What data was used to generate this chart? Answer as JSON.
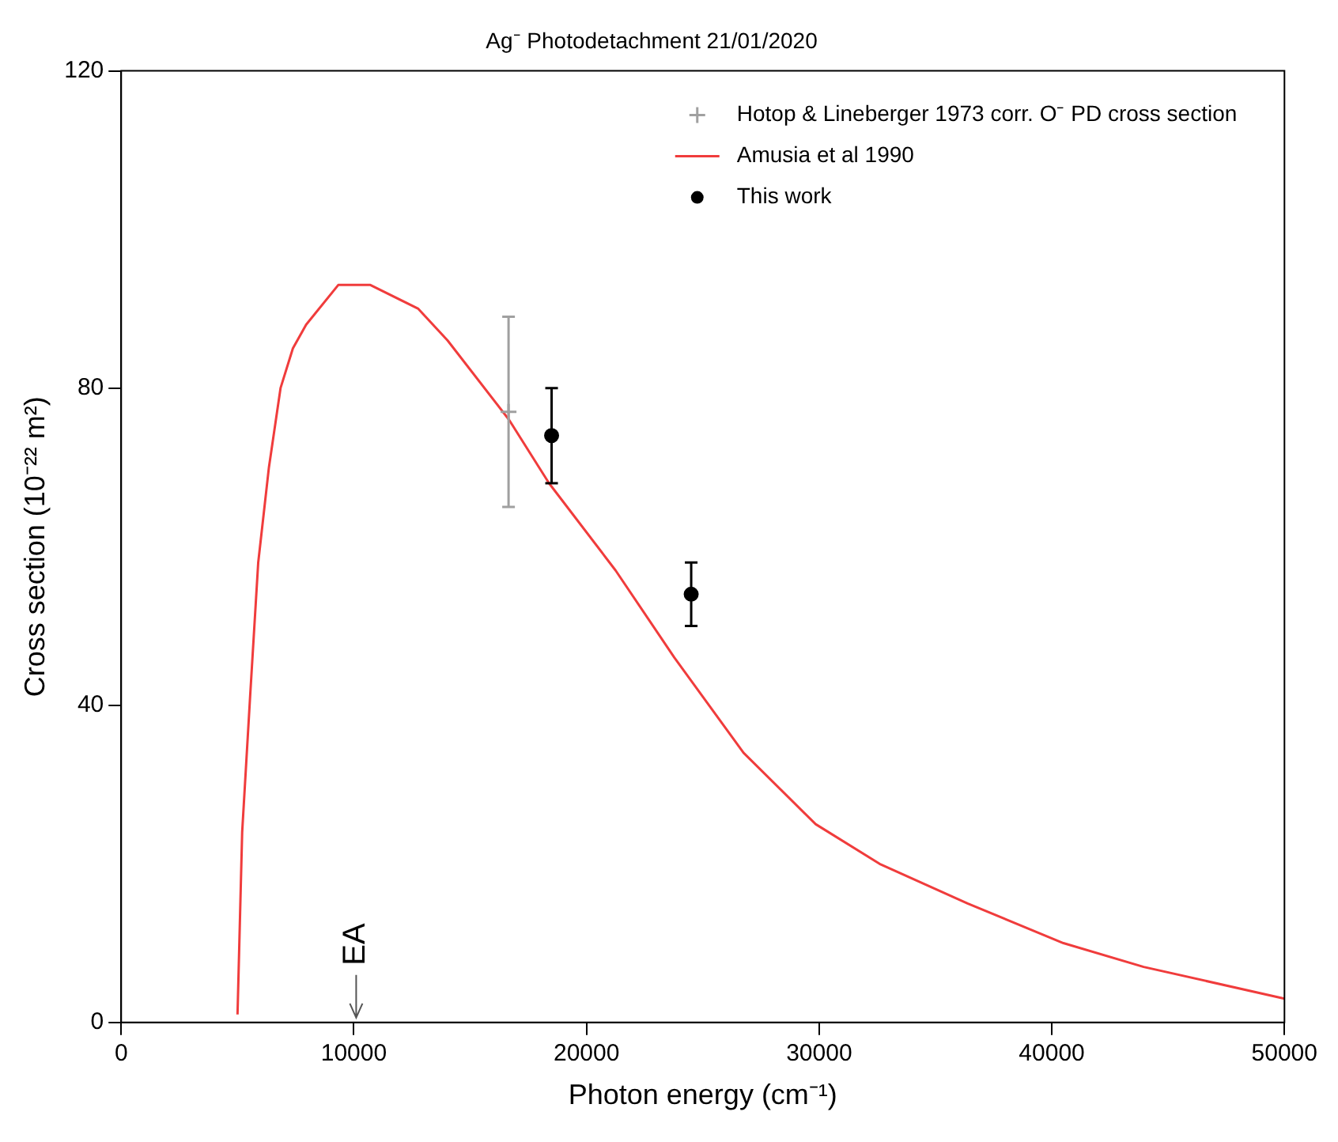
{
  "chart_data": {
    "type": "scatter",
    "title": "Ag⁻ Photodetachment 21/01/2020",
    "xlabel": "Photon energy (cm⁻¹)",
    "ylabel": "Cross section (10⁻²² m²)",
    "xlim": [
      0,
      50000
    ],
    "xticks": [
      0,
      10000,
      20000,
      30000,
      40000,
      50000
    ],
    "ylim": [
      0,
      120
    ],
    "yticks": [
      0,
      40,
      80,
      120
    ],
    "grid": false,
    "legend": "top right",
    "annotations": [
      "EA"
    ],
    "series": [
      {
        "name": "Hotop & Lineberger 1973 corr. O⁻ PD cross section",
        "marker": "cross",
        "color": "#a0a0a0",
        "x": [
          16650
        ],
        "values": [
          77
        ],
        "errors": [
          12
        ]
      },
      {
        "name": "Amusia et al 1990",
        "type": "line",
        "marker": "none",
        "color": "#f03c3c",
        "x": [
          5000,
          5200,
          5540,
          5890,
          6350,
          6850,
          7380,
          7950,
          9330,
          10710,
          12770,
          14030,
          16670,
          18390,
          21250,
          23780,
          26750,
          29850,
          32600,
          36380,
          40500,
          43950,
          50000
        ],
        "values": [
          1,
          24,
          41,
          58,
          70,
          80,
          85,
          88,
          93,
          93,
          90,
          86,
          76,
          68,
          57,
          46,
          34,
          25,
          20,
          15,
          10,
          7,
          3
        ]
      },
      {
        "name": "This work",
        "marker": "circle",
        "color": "#000000",
        "x": [
          18500,
          24500
        ],
        "values": [
          74,
          54
        ],
        "errors": [
          6,
          4
        ]
      }
    ]
  }
}
